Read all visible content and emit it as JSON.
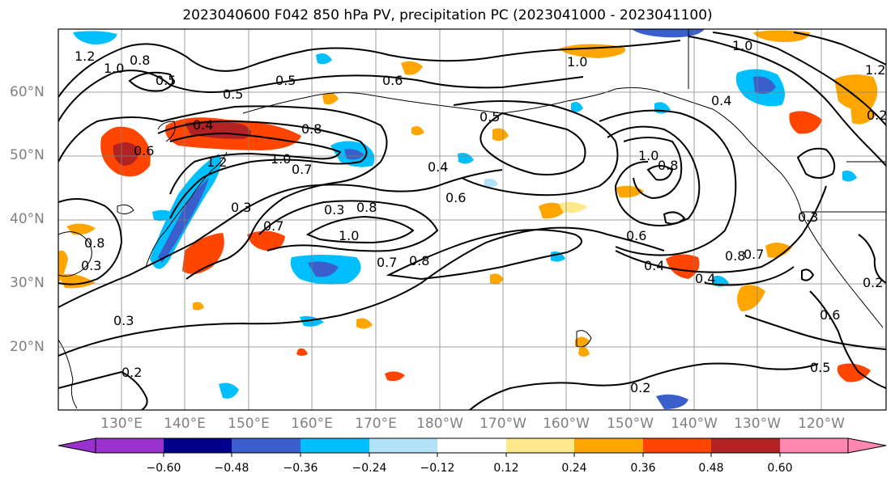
{
  "title": "2023040600 F042 850 hPa PV, precipitation PC (2023041000 - 2023041100)",
  "map": {
    "lat_ticks": [
      "60°N",
      "50°N",
      "40°N",
      "30°N",
      "20°N"
    ],
    "lon_ticks": [
      "130°E",
      "140°E",
      "150°E",
      "160°E",
      "170°E",
      "180°W",
      "170°W",
      "160°W",
      "150°W",
      "140°W",
      "130°W",
      "120°W"
    ],
    "contour_labels": [
      "1.2",
      "1.0",
      "0.8",
      "0.5",
      "0.5",
      "0.6",
      "0.5",
      "1.0",
      "0.4",
      "0.6",
      "0.8",
      "1.2",
      "1.0",
      "0.7",
      "0.3",
      "0.3",
      "0.4",
      "0.6",
      "0.8",
      "0.7",
      "0.8",
      "0.3",
      "0.8",
      "1.0",
      "0.7",
      "0.8",
      "1.0",
      "0.6",
      "0.4",
      "0.8",
      "0.7",
      "0.4",
      "0.3",
      "0.6",
      "0.5",
      "0.2",
      "0.2",
      "0.3",
      "0.4",
      "0.2",
      "1.0",
      "1.2",
      "0.5",
      "0.2"
    ],
    "colors": {
      "contour": "#000000",
      "grid": "#808080",
      "land": "#000000"
    }
  },
  "colorbar": {
    "levels": [
      "−0.60",
      "−0.48",
      "−0.36",
      "−0.24",
      "−0.12",
      "0.12",
      "0.24",
      "0.36",
      "0.48",
      "0.60"
    ],
    "colors": [
      "#9932cc",
      "#00008b",
      "#3a5fcd",
      "#00bfff",
      "#b2e2fa",
      "#ffffff",
      "#ffe98a",
      "#ffa500",
      "#ff4500",
      "#b22222",
      "#ff87b0"
    ]
  }
}
